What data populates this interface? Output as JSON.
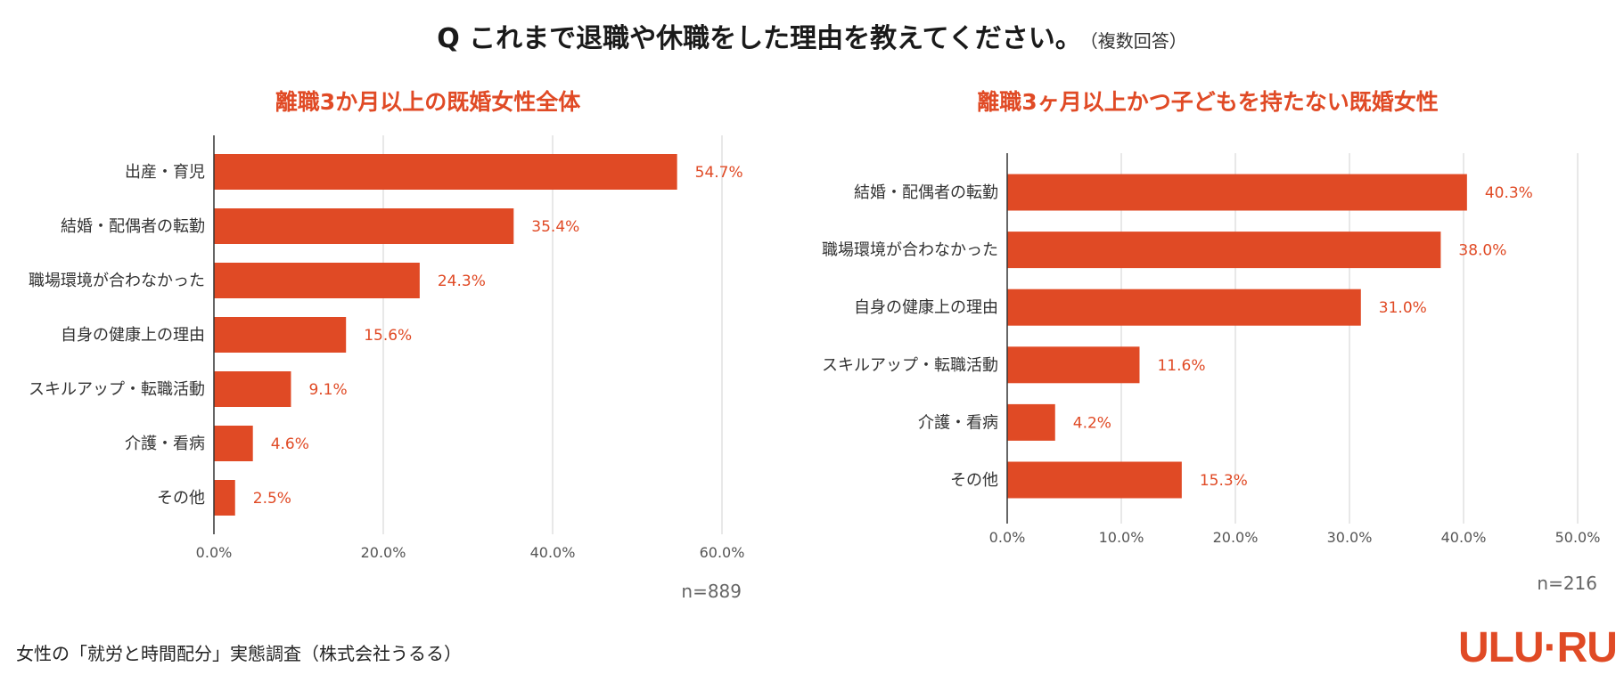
{
  "header": {
    "title": "Q これまで退職や休職をした理由を教えてください。",
    "note": "（複数回答）"
  },
  "chart_data": [
    {
      "type": "bar",
      "orientation": "horizontal",
      "title": "離職3か月以上の既婚女性全体",
      "categories": [
        "出産・育児",
        "結婚・配偶者の転勤",
        "職場環境が合わなかった",
        "自身の健康上の理由",
        "スキルアップ・転職活動",
        "介護・看病",
        "その他"
      ],
      "values": [
        54.7,
        35.4,
        24.3,
        15.6,
        9.1,
        4.6,
        2.5
      ],
      "value_labels": [
        "54.7%",
        "35.4%",
        "24.3%",
        "15.6%",
        "9.1%",
        "4.6%",
        "2.5%"
      ],
      "xlim": [
        0,
        60
      ],
      "ticks": [
        0,
        20,
        40,
        60
      ],
      "tick_labels": [
        "0.0%",
        "20.0%",
        "40.0%",
        "60.0%"
      ],
      "sample_size": "n=889",
      "color": "#e04a25"
    },
    {
      "type": "bar",
      "orientation": "horizontal",
      "title": "離職3ヶ月以上かつ子どもを持たない既婚女性",
      "categories": [
        "結婚・配偶者の転勤",
        "職場環境が合わなかった",
        "自身の健康上の理由",
        "スキルアップ・転職活動",
        "介護・看病",
        "その他"
      ],
      "values": [
        40.3,
        38.0,
        31.0,
        11.6,
        4.2,
        15.3
      ],
      "value_labels": [
        "40.3%",
        "38.0%",
        "31.0%",
        "11.6%",
        "4.2%",
        "15.3%"
      ],
      "xlim": [
        0,
        50
      ],
      "ticks": [
        0,
        10,
        20,
        30,
        40,
        50
      ],
      "tick_labels": [
        "0.0%",
        "10.0%",
        "20.0%",
        "30.0%",
        "40.0%",
        "50.0%"
      ],
      "sample_size": "n=216",
      "color": "#e04a25"
    }
  ],
  "footer": {
    "source": "女性の「就労と時間配分」実態調査（株式会社うるる）",
    "logo_text": "ULU·RU"
  }
}
